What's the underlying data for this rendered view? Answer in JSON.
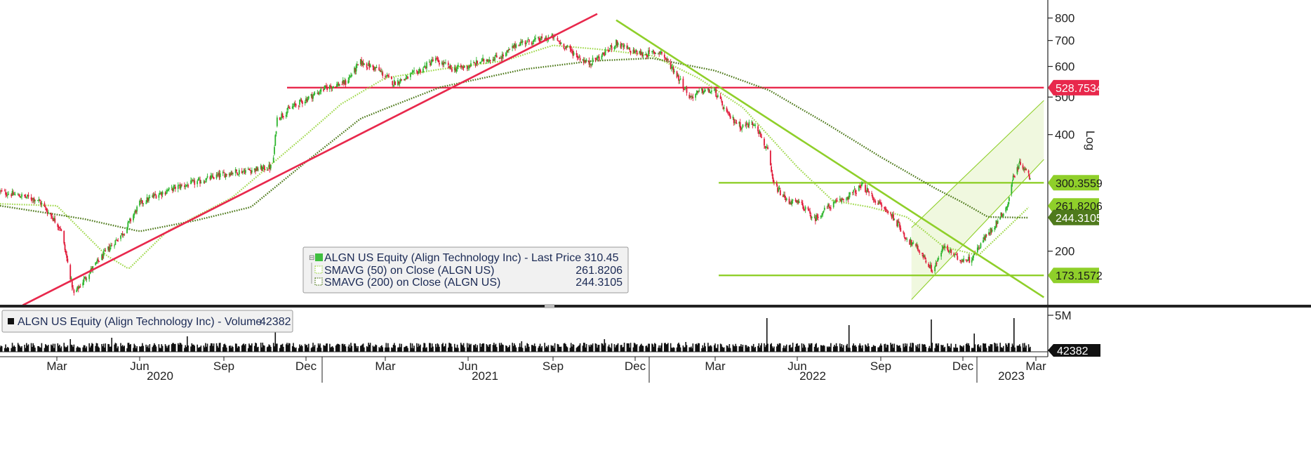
{
  "chart_data": {
    "type": "candlestick",
    "instrument": "ALGN US Equity (Align Technology Inc)",
    "scale": "log",
    "scale_label": "Log",
    "y_ticks": [
      200,
      300,
      400,
      500,
      600,
      700,
      800
    ],
    "ylim": [
      140,
      820
    ],
    "x_month_labels": [
      {
        "label": "Mar",
        "date": "2020-03"
      },
      {
        "label": "Jun",
        "date": "2020-06"
      },
      {
        "label": "Sep",
        "date": "2020-09"
      },
      {
        "label": "Dec",
        "date": "2020-12"
      },
      {
        "label": "Mar",
        "date": "2021-03"
      },
      {
        "label": "Jun",
        "date": "2021-06"
      },
      {
        "label": "Sep",
        "date": "2021-09"
      },
      {
        "label": "Dec",
        "date": "2021-12"
      },
      {
        "label": "Mar",
        "date": "2022-03"
      },
      {
        "label": "Jun",
        "date": "2022-06"
      },
      {
        "label": "Sep",
        "date": "2022-09"
      },
      {
        "label": "Dec",
        "date": "2022-12"
      },
      {
        "label": "Mar",
        "date": "2023-03"
      }
    ],
    "x_year_labels": [
      "2020",
      "2021",
      "2022",
      "2023"
    ],
    "price_path": [
      [
        "2020-01-01",
        285
      ],
      [
        "2020-02-10",
        272
      ],
      [
        "2020-03-05",
        230
      ],
      [
        "2020-03-20",
        155
      ],
      [
        "2020-04-05",
        175
      ],
      [
        "2020-04-25",
        200
      ],
      [
        "2020-05-15",
        225
      ],
      [
        "2020-06-01",
        265
      ],
      [
        "2020-06-20",
        280
      ],
      [
        "2020-07-10",
        292
      ],
      [
        "2020-07-30",
        300
      ],
      [
        "2020-08-20",
        310
      ],
      [
        "2020-09-10",
        320
      ],
      [
        "2020-10-05",
        325
      ],
      [
        "2020-10-25",
        330
      ],
      [
        "2020-10-30",
        440
      ],
      [
        "2020-11-15",
        470
      ],
      [
        "2020-12-05",
        500
      ],
      [
        "2020-12-25",
        530
      ],
      [
        "2021-01-15",
        545
      ],
      [
        "2021-02-01",
        615
      ],
      [
        "2021-02-20",
        590
      ],
      [
        "2021-03-10",
        545
      ],
      [
        "2021-03-25",
        560
      ],
      [
        "2021-04-10",
        590
      ],
      [
        "2021-04-25",
        625
      ],
      [
        "2021-05-15",
        590
      ],
      [
        "2021-06-01",
        600
      ],
      [
        "2021-06-20",
        625
      ],
      [
        "2021-07-10",
        640
      ],
      [
        "2021-07-25",
        690
      ],
      [
        "2021-08-15",
        700
      ],
      [
        "2021-09-01",
        715
      ],
      [
        "2021-09-20",
        660
      ],
      [
        "2021-10-10",
        610
      ],
      [
        "2021-10-25",
        640
      ],
      [
        "2021-11-10",
        690
      ],
      [
        "2021-11-25",
        660
      ],
      [
        "2021-12-10",
        645
      ],
      [
        "2021-12-30",
        655
      ],
      [
        "2022-01-15",
        580
      ],
      [
        "2022-02-01",
        500
      ],
      [
        "2022-02-15",
        520
      ],
      [
        "2022-03-01",
        515
      ],
      [
        "2022-03-15",
        450
      ],
      [
        "2022-03-30",
        420
      ],
      [
        "2022-04-15",
        430
      ],
      [
        "2022-04-29",
        360
      ],
      [
        "2022-05-05",
        300
      ],
      [
        "2022-05-20",
        270
      ],
      [
        "2022-06-05",
        265
      ],
      [
        "2022-06-20",
        242
      ],
      [
        "2022-07-05",
        260
      ],
      [
        "2022-07-25",
        275
      ],
      [
        "2022-08-12",
        295
      ],
      [
        "2022-08-30",
        265
      ],
      [
        "2022-09-15",
        245
      ],
      [
        "2022-09-30",
        215
      ],
      [
        "2022-10-15",
        200
      ],
      [
        "2022-10-28",
        178
      ],
      [
        "2022-11-10",
        205
      ],
      [
        "2022-11-25",
        192
      ],
      [
        "2022-12-10",
        190
      ],
      [
        "2022-12-25",
        212
      ],
      [
        "2023-01-10",
        235
      ],
      [
        "2023-01-25",
        262
      ],
      [
        "2023-02-01",
        310
      ],
      [
        "2023-02-10",
        340
      ],
      [
        "2023-02-22",
        310
      ]
    ],
    "series": [
      {
        "name": "SMAVG (50)  on Close (ALGN US)",
        "value": "261.8206",
        "color": "#9fd84a",
        "path": [
          [
            "2020-01-01",
            265
          ],
          [
            "2020-03-01",
            262
          ],
          [
            "2020-04-25",
            195
          ],
          [
            "2020-05-20",
            180
          ],
          [
            "2020-07-01",
            225
          ],
          [
            "2020-09-10",
            275
          ],
          [
            "2020-11-20",
            380
          ],
          [
            "2021-01-10",
            480
          ],
          [
            "2021-03-01",
            560
          ],
          [
            "2021-05-01",
            590
          ],
          [
            "2021-07-10",
            620
          ],
          [
            "2021-09-01",
            680
          ],
          [
            "2021-10-20",
            665
          ],
          [
            "2021-12-20",
            640
          ],
          [
            "2022-02-10",
            560
          ],
          [
            "2022-04-01",
            470
          ],
          [
            "2022-06-01",
            330
          ],
          [
            "2022-07-10",
            270
          ],
          [
            "2022-08-20",
            260
          ],
          [
            "2022-09-30",
            245
          ],
          [
            "2022-11-10",
            205
          ],
          [
            "2022-12-20",
            195
          ],
          [
            "2023-01-25",
            230
          ],
          [
            "2023-02-22",
            262
          ]
        ]
      },
      {
        "name": "SMAVG (200)  on Close (ALGN US)",
        "value": "244.3105",
        "color": "#4f7a1c",
        "path": [
          [
            "2020-01-01",
            262
          ],
          [
            "2020-04-01",
            242
          ],
          [
            "2020-06-01",
            225
          ],
          [
            "2020-08-01",
            240
          ],
          [
            "2020-10-01",
            260
          ],
          [
            "2020-12-01",
            340
          ],
          [
            "2021-02-01",
            440
          ],
          [
            "2021-05-01",
            530
          ],
          [
            "2021-08-01",
            590
          ],
          [
            "2021-10-15",
            620
          ],
          [
            "2021-12-20",
            630
          ],
          [
            "2022-03-01",
            585
          ],
          [
            "2022-05-01",
            520
          ],
          [
            "2022-07-01",
            430
          ],
          [
            "2022-09-01",
            350
          ],
          [
            "2022-11-01",
            290
          ],
          [
            "2023-01-01",
            245
          ],
          [
            "2023-02-22",
            244
          ]
        ]
      }
    ],
    "last_price_label": "Last Price 310.45",
    "annotations": {
      "horizontal_lines": [
        {
          "value": 528.7534,
          "label": "528.7534",
          "color": "#e8284c",
          "from": "2020-11-10",
          "to": "2023-03-10"
        },
        {
          "value": 300.3559,
          "label": "300.3559",
          "color": "#8fcf2a",
          "from": "2022-03-05",
          "to": "2023-03-10"
        },
        {
          "value": 173.1572,
          "label": "173.1572",
          "color": "#8fcf2a",
          "from": "2022-03-05",
          "to": "2023-03-10"
        }
      ],
      "trendlines": [
        {
          "color": "#e8284c",
          "from": [
            "2020-01-25",
            145
          ],
          "to": [
            "2021-10-20",
            820
          ]
        },
        {
          "color": "#8fcf2a",
          "from": [
            "2021-11-10",
            790
          ],
          "to": [
            "2023-03-10",
            152
          ]
        }
      ],
      "channel": {
        "color": "#8fcf2a",
        "lower": [
          [
            "2022-10-05",
            150
          ],
          [
            "2023-03-10",
            345
          ]
        ],
        "upper": [
          [
            "2022-10-05",
            230
          ],
          [
            "2023-03-10",
            490
          ]
        ]
      }
    },
    "right_labels": [
      {
        "text": "261.8206",
        "color": "#8fcf2a",
        "value": 261.8206
      },
      {
        "text": "244.3105",
        "color": "#4f7a1c",
        "value": 244.3105
      }
    ],
    "volume": {
      "legend": "ALGN US Equity (Align Technology Inc) - Volume",
      "legend_value": "42382",
      "axis_label": "5M",
      "last_label": "42382"
    }
  },
  "legend": {
    "price_label": "ALGN US Equity (Align Technology Inc) - Last Price 310.45",
    "price_value": "",
    "sma50_label": "SMAVG (50)  on Close (ALGN US)",
    "sma50_value": "261.8206",
    "sma200_label": "SMAVG (200)  on Close (ALGN US)",
    "sma200_value": "244.3105"
  }
}
